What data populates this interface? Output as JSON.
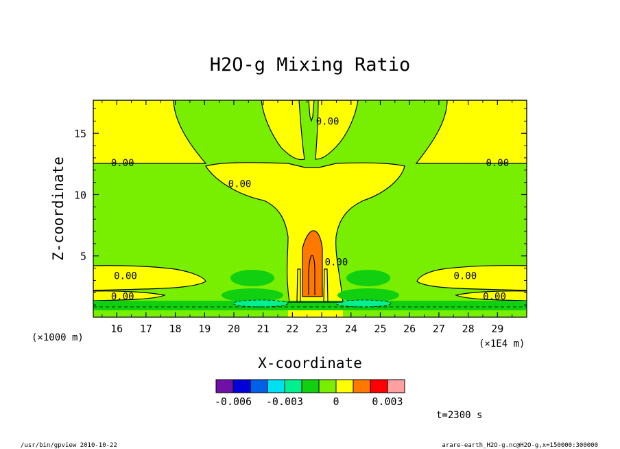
{
  "chart_data": {
    "type": "contour",
    "title": "H2O-g Mixing Ratio",
    "xlabel": "X-coordinate",
    "ylabel": "Z-coordinate",
    "x_unit": "(×1E4 m)",
    "y_unit": "(×1000 m)",
    "xlim": [
      15.2,
      30.0
    ],
    "ylim": [
      0.0,
      17.7
    ],
    "xticks": [
      16,
      17,
      18,
      19,
      20,
      21,
      22,
      23,
      24,
      25,
      26,
      27,
      28,
      29
    ],
    "yticks": [
      5,
      10,
      15
    ],
    "contour_labels": [
      {
        "text": "0.00",
        "x": 16.2,
        "y": 12.6
      },
      {
        "text": "0.00",
        "x": 29.0,
        "y": 12.6
      },
      {
        "text": "0.00",
        "x": 20.2,
        "y": 10.9
      },
      {
        "text": "0.00",
        "x": 23.2,
        "y": 16.0
      },
      {
        "text": "0.00",
        "x": 23.5,
        "y": 4.5
      },
      {
        "text": "0.00",
        "x": 16.3,
        "y": 3.4
      },
      {
        "text": "0.00",
        "x": 27.9,
        "y": 3.4
      },
      {
        "text": "0.00",
        "x": 16.2,
        "y": 1.7
      },
      {
        "text": "0.00",
        "x": 28.9,
        "y": 1.7
      }
    ],
    "colorbar": {
      "colors": [
        "#7010a8",
        "#0000d8",
        "#0060e8",
        "#00e0f0",
        "#00f090",
        "#10d010",
        "#78ee00",
        "#ffff00",
        "#ff7800",
        "#ff0000",
        "#ffa0a0"
      ],
      "tick_labels": [
        "-0.006",
        "-0.003",
        "0",
        "0.003"
      ],
      "tick_values": [
        -0.006,
        -0.003,
        0.0,
        0.003
      ]
    },
    "time_label": "t=2300 s"
  },
  "footer": {
    "left": "/usr/bin/gpview  2010-10-22",
    "right": "arare-earth_H2O-g.nc@H2O-g,x=150000:300000"
  }
}
